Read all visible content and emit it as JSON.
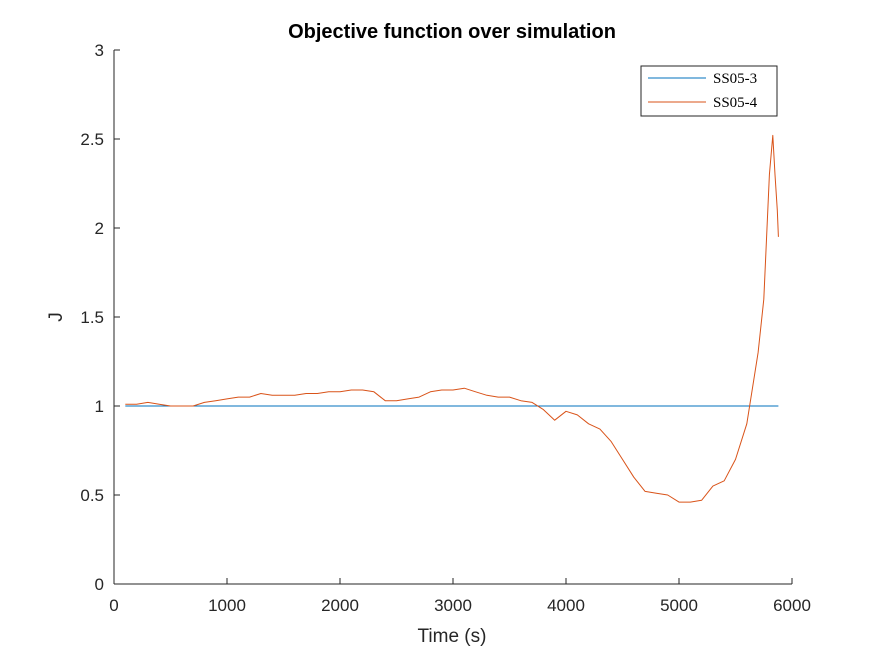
{
  "chart_data": {
    "type": "line",
    "title": "Objective function over simulation",
    "xlabel": "Time (s)",
    "ylabel": "J",
    "xlim": [
      0,
      6000
    ],
    "ylim": [
      0,
      3
    ],
    "xticks": [
      0,
      1000,
      2000,
      3000,
      4000,
      5000,
      6000
    ],
    "yticks": [
      0,
      0.5,
      1,
      1.5,
      2,
      2.5,
      3
    ],
    "xtick_labels": [
      "0",
      "1000",
      "2000",
      "3000",
      "4000",
      "5000",
      "6000"
    ],
    "ytick_labels": [
      "0",
      "0.5",
      "1",
      "1.5",
      "2",
      "2.5",
      "3"
    ],
    "grid": false,
    "legend_position": "top-right",
    "series": [
      {
        "name": "SS05-3",
        "color": "#0072BD",
        "x": [
          100,
          5880
        ],
        "y": [
          1.0,
          1.0
        ]
      },
      {
        "name": "SS05-4",
        "color": "#D95319",
        "x": [
          100,
          200,
          300,
          400,
          500,
          600,
          700,
          800,
          900,
          1000,
          1100,
          1200,
          1300,
          1400,
          1500,
          1600,
          1700,
          1800,
          1900,
          2000,
          2100,
          2200,
          2300,
          2400,
          2500,
          2600,
          2700,
          2800,
          2900,
          3000,
          3100,
          3200,
          3300,
          3400,
          3500,
          3600,
          3700,
          3800,
          3850,
          3900,
          4000,
          4100,
          4200,
          4300,
          4400,
          4500,
          4600,
          4700,
          4800,
          4900,
          5000,
          5050,
          5100,
          5200,
          5300,
          5400,
          5500,
          5600,
          5700,
          5750,
          5800,
          5830,
          5850,
          5870,
          5880
        ],
        "y": [
          1.01,
          1.01,
          1.02,
          1.01,
          1.0,
          1.0,
          1.0,
          1.02,
          1.03,
          1.04,
          1.05,
          1.05,
          1.07,
          1.06,
          1.06,
          1.06,
          1.07,
          1.07,
          1.08,
          1.08,
          1.09,
          1.09,
          1.08,
          1.03,
          1.03,
          1.04,
          1.05,
          1.08,
          1.09,
          1.09,
          1.1,
          1.08,
          1.06,
          1.05,
          1.05,
          1.03,
          1.02,
          0.98,
          0.95,
          0.92,
          0.97,
          0.95,
          0.9,
          0.87,
          0.8,
          0.7,
          0.6,
          0.52,
          0.51,
          0.5,
          0.46,
          0.46,
          0.46,
          0.47,
          0.55,
          0.58,
          0.7,
          0.9,
          1.3,
          1.6,
          2.3,
          2.52,
          2.3,
          2.1,
          1.95
        ]
      }
    ]
  }
}
